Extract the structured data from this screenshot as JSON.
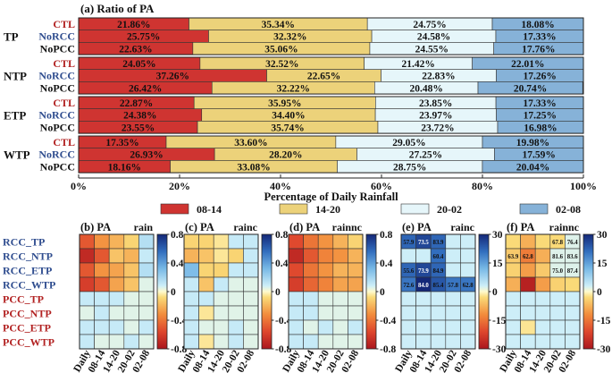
{
  "chart_data": [
    {
      "type": "stacked-bar-horizontal",
      "panel_label": "(a) Ratio of PA",
      "xlabel": "Percentage of Daily Rainfall",
      "xlim": [
        0,
        100
      ],
      "xticks": [
        "0%",
        "20%",
        "40%",
        "60%",
        "80%",
        "100%"
      ],
      "legend": [
        "08-14",
        "14-20",
        "20-02",
        "02-08"
      ],
      "series_colors": [
        "#cf3431",
        "#ecd27a",
        "#e6f6fa",
        "#86b2d8"
      ],
      "groups": [
        {
          "name": "TP",
          "rows": [
            {
              "label": "CTL",
              "color": "#b22222",
              "values": [
                21.86,
                35.34,
                24.75,
                18.08
              ],
              "texts": [
                "21.86%",
                "35.34%",
                "24.75%",
                "18.08%"
              ]
            },
            {
              "label": "NoRCC",
              "color": "#2f4d8f",
              "values": [
                25.75,
                32.32,
                24.58,
                17.33
              ],
              "texts": [
                "25.75%",
                "32.32%",
                "24.58%",
                "17.33%"
              ]
            },
            {
              "label": "NoPCC",
              "color": "#111111",
              "values": [
                22.63,
                35.06,
                24.55,
                17.76
              ],
              "texts": [
                "22.63%",
                "35.06%",
                "24.55%",
                "17.76%"
              ]
            }
          ]
        },
        {
          "name": "NTP",
          "rows": [
            {
              "label": "CTL",
              "color": "#b22222",
              "values": [
                24.05,
                32.52,
                21.42,
                22.01
              ],
              "texts": [
                "24.05%",
                "32.52%",
                "21.42%",
                "22.01%"
              ]
            },
            {
              "label": "NoRCC",
              "color": "#2f4d8f",
              "values": [
                37.26,
                22.65,
                22.83,
                17.26
              ],
              "texts": [
                "37.26%",
                "22.65%",
                "22.83%",
                "17.26%"
              ]
            },
            {
              "label": "NoPCC",
              "color": "#111111",
              "values": [
                26.42,
                32.22,
                20.48,
                20.74
              ],
              "texts": [
                "26.42%",
                "32.22%",
                "20.48%",
                "20.74%"
              ]
            }
          ]
        },
        {
          "name": "ETP",
          "rows": [
            {
              "label": "CTL",
              "color": "#b22222",
              "values": [
                22.87,
                35.95,
                23.85,
                17.33
              ],
              "texts": [
                "22.87%",
                "35.95%",
                "23.85%",
                "17.33%"
              ]
            },
            {
              "label": "NoRCC",
              "color": "#2f4d8f",
              "values": [
                24.38,
                34.4,
                23.97,
                17.25
              ],
              "texts": [
                "24.38%",
                "34.40%",
                "23.97%",
                "17.25%"
              ]
            },
            {
              "label": "NoPCC",
              "color": "#111111",
              "values": [
                23.55,
                35.74,
                23.72,
                16.98
              ],
              "texts": [
                "23.55%",
                "35.74%",
                "23.72%",
                "16.98%"
              ]
            }
          ]
        },
        {
          "name": "WTP",
          "rows": [
            {
              "label": "CTL",
              "color": "#b22222",
              "values": [
                17.35,
                33.6,
                29.05,
                19.98
              ],
              "texts": [
                "17.35%",
                "33.60%",
                "29.05%",
                "19.98%"
              ]
            },
            {
              "label": "NoRCC",
              "color": "#2f4d8f",
              "values": [
                26.93,
                28.2,
                27.25,
                17.59
              ],
              "texts": [
                "26.93%",
                "28.20%",
                "27.25%",
                "17.59%"
              ]
            },
            {
              "label": "NoPCC",
              "color": "#111111",
              "values": [
                18.16,
                33.08,
                28.75,
                20.04
              ],
              "texts": [
                "18.16%",
                "33.08%",
                "28.75%",
                "20.04%"
              ]
            }
          ]
        }
      ]
    },
    {
      "type": "heatmap",
      "shared_rows": [
        {
          "label": "RCC_TP",
          "color": "#2f4d8f"
        },
        {
          "label": "RCC_NTP",
          "color": "#2f4d8f"
        },
        {
          "label": "RCC_ETP",
          "color": "#2f4d8f"
        },
        {
          "label": "RCC_WTP",
          "color": "#2f4d8f"
        },
        {
          "label": "PCC_TP",
          "color": "#b22222"
        },
        {
          "label": "PCC_NTP",
          "color": "#b22222"
        },
        {
          "label": "PCC_ETP",
          "color": "#b22222"
        },
        {
          "label": "PCC_WTP",
          "color": "#b22222"
        }
      ],
      "columns": [
        "Daily",
        "08-14",
        "14-20",
        "20-02",
        "02-08"
      ],
      "panels": [
        {
          "id": "b",
          "label": "(b) PA",
          "var": "rain",
          "vmin": -0.8,
          "vmax": 0.8,
          "ticks": [
            "0.8",
            "0.4",
            "0",
            "-0.4",
            "-0.8"
          ],
          "values": [
            [
              -0.5,
              -0.3,
              -0.2,
              -0.1,
              0.15
            ],
            [
              -0.7,
              -0.5,
              -0.15,
              -0.2,
              0.1
            ],
            [
              -0.5,
              -0.3,
              -0.25,
              -0.15,
              0.15
            ],
            [
              -0.6,
              -0.5,
              -0.25,
              -0.15,
              0.05
            ],
            [
              0.1,
              0.1,
              0.1,
              0.05,
              0.05
            ],
            [
              0.05,
              0.1,
              0.05,
              0.05,
              0.05
            ],
            [
              0.1,
              0.1,
              0.1,
              0.05,
              0.1
            ],
            [
              0.1,
              0.05,
              0.05,
              0.1,
              0.05
            ]
          ],
          "annotations": [
            [
              null,
              null,
              null,
              null,
              null
            ],
            [
              null,
              null,
              null,
              null,
              null
            ],
            [
              null,
              null,
              null,
              null,
              null
            ],
            [
              null,
              null,
              null,
              null,
              null
            ],
            [
              null,
              null,
              null,
              null,
              null
            ],
            [
              null,
              null,
              null,
              null,
              null
            ],
            [
              null,
              null,
              null,
              null,
              null
            ],
            [
              null,
              null,
              null,
              null,
              null
            ]
          ]
        },
        {
          "id": "c",
          "label": "(c) PA",
          "var": "rainc",
          "vmin": -0.8,
          "vmax": 0.8,
          "ticks": [
            "0.8",
            "0.4",
            "0",
            "-0.4",
            "-0.8"
          ],
          "values": [
            [
              -0.1,
              -0.1,
              -0.05,
              0.1,
              0.1
            ],
            [
              -0.2,
              -0.15,
              -0.05,
              -0.1,
              0.1
            ],
            [
              0.3,
              -0.1,
              -0.1,
              0.1,
              0.1
            ],
            [
              0.1,
              -0.15,
              0.1,
              0.05,
              0.05
            ],
            [
              0.1,
              0.1,
              0.05,
              0.05,
              0.05
            ],
            [
              0.1,
              -0.05,
              0.05,
              0.05,
              0.05
            ],
            [
              0.1,
              0.05,
              0.05,
              0.1,
              0.05
            ],
            [
              0.1,
              -0.05,
              0.05,
              0.1,
              0.05
            ]
          ],
          "annotations": [
            [
              null,
              null,
              null,
              null,
              null
            ],
            [
              null,
              null,
              null,
              null,
              null
            ],
            [
              null,
              null,
              null,
              null,
              null
            ],
            [
              null,
              null,
              null,
              null,
              null
            ],
            [
              null,
              null,
              null,
              null,
              null
            ],
            [
              null,
              null,
              null,
              null,
              null
            ],
            [
              null,
              null,
              null,
              null,
              null
            ],
            [
              null,
              null,
              null,
              null,
              null
            ]
          ]
        },
        {
          "id": "d",
          "label": "(d) PA",
          "var": "rainnc",
          "vmin": -0.8,
          "vmax": 0.8,
          "ticks": [
            "0.8",
            "0.4",
            "0",
            "-0.4",
            "-0.8"
          ],
          "values": [
            [
              -0.55,
              -0.4,
              -0.3,
              -0.2,
              -0.1
            ],
            [
              -0.7,
              -0.5,
              -0.35,
              -0.3,
              -0.2
            ],
            [
              -0.55,
              -0.4,
              -0.3,
              -0.2,
              -0.2
            ],
            [
              -0.6,
              -0.45,
              -0.35,
              -0.25,
              -0.25
            ],
            [
              0.1,
              0.1,
              0.05,
              0.05,
              0.05
            ],
            [
              0.1,
              0.1,
              0.05,
              0.05,
              0.05
            ],
            [
              0.1,
              0.05,
              0.1,
              0.05,
              0.1
            ],
            [
              0.1,
              0.1,
              0.05,
              0.05,
              0.05
            ]
          ],
          "annotations": [
            [
              null,
              null,
              null,
              null,
              null
            ],
            [
              null,
              null,
              null,
              null,
              null
            ],
            [
              null,
              null,
              null,
              null,
              null
            ],
            [
              null,
              null,
              null,
              null,
              null
            ],
            [
              null,
              null,
              null,
              null,
              null
            ],
            [
              null,
              null,
              null,
              null,
              null
            ],
            [
              null,
              null,
              null,
              null,
              null
            ],
            [
              null,
              null,
              null,
              null,
              null
            ]
          ]
        },
        {
          "id": "e",
          "label": "(e) PA",
          "var": "rainc",
          "vmin": -30,
          "vmax": 30,
          "ticks": [
            "30",
            "15",
            "0",
            "-15",
            "-30"
          ],
          "values": [
            [
              22,
              26,
              22,
              3,
              3
            ],
            [
              3,
              3,
              21,
              3,
              3
            ],
            [
              22,
              26,
              22,
              3,
              3
            ],
            [
              20,
              30,
              24,
              20,
              20
            ],
            [
              3,
              3,
              3,
              3,
              3
            ],
            [
              3,
              3,
              3,
              3,
              3
            ],
            [
              3,
              3,
              3,
              3,
              3
            ],
            [
              3,
              3,
              3,
              3,
              3
            ]
          ],
          "annotations": [
            [
              "57.9",
              "73.5",
              "83.9",
              null,
              null
            ],
            [
              null,
              null,
              "60.4",
              null,
              null
            ],
            [
              "55.6",
              "73.9",
              "84.9",
              null,
              null
            ],
            [
              "72.6",
              "84.0",
              "85.4",
              "57.8",
              "62.8"
            ],
            [
              null,
              null,
              null,
              null,
              null
            ],
            [
              null,
              null,
              null,
              null,
              null
            ],
            [
              null,
              null,
              null,
              null,
              null
            ],
            [
              null,
              null,
              null,
              null,
              null
            ]
          ]
        },
        {
          "id": "f",
          "label": "(f) PA",
          "var": "rainnc",
          "vmin": -30,
          "vmax": 30,
          "ticks": [
            "30",
            "15",
            "0",
            "-15",
            "-30"
          ],
          "values": [
            [
              -3,
              -8,
              -3,
              -3,
              2
            ],
            [
              -5,
              -14,
              -8,
              2,
              2
            ],
            [
              -4,
              -10,
              -5,
              2,
              2
            ],
            [
              -8,
              -28,
              -10,
              -4,
              -3
            ],
            [
              3,
              3,
              3,
              3,
              3
            ],
            [
              3,
              3,
              3,
              3,
              3
            ],
            [
              3,
              -2,
              3,
              3,
              3
            ],
            [
              3,
              3,
              3,
              3,
              3
            ]
          ],
          "annotations": [
            [
              null,
              null,
              null,
              "67.8",
              "76.4"
            ],
            [
              "63.9",
              "62.8",
              null,
              "81.6",
              "83.6"
            ],
            [
              null,
              null,
              null,
              "75.0",
              "87.4"
            ],
            [
              null,
              null,
              null,
              null,
              null
            ],
            [
              null,
              null,
              null,
              null,
              null
            ],
            [
              null,
              null,
              null,
              null,
              null
            ],
            [
              null,
              null,
              null,
              null,
              null
            ],
            [
              null,
              null,
              null,
              null,
              null
            ]
          ]
        }
      ]
    }
  ]
}
